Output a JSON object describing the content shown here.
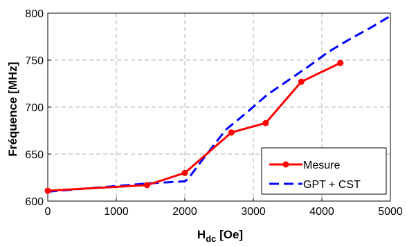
{
  "chart_data": {
    "type": "line",
    "title": "",
    "xlabel_main": "H",
    "xlabel_sub": "dc",
    "xlabel_unit": " [Oe]",
    "ylabel": "Fréquence [MHz]",
    "xlim": [
      0,
      5000
    ],
    "ylim": [
      600,
      800
    ],
    "x_ticks": [
      "0",
      "1000",
      "2000",
      "3000",
      "4000",
      "5000"
    ],
    "y_ticks": [
      "600",
      "650",
      "700",
      "750",
      "800"
    ],
    "grid": true,
    "legend_position": "bottom-right",
    "series": [
      {
        "name": "Mesure",
        "color": "#ff0000",
        "style": "solid-markers",
        "x": [
          0,
          1450,
          2000,
          2680,
          3180,
          3700,
          4270
        ],
        "y": [
          611,
          617,
          630,
          673,
          683,
          727,
          747
        ]
      },
      {
        "name": "GPT + CST",
        "color": "#0000ff",
        "style": "dashed",
        "x": [
          0,
          500,
          1000,
          1500,
          2000,
          2040,
          2300,
          2600,
          2900,
          3200,
          3500,
          3800,
          4100,
          4400,
          4700,
          5000
        ],
        "y": [
          610,
          613,
          616,
          619,
          621,
          623,
          648,
          676,
          694,
          713,
          728,
          743,
          759,
          772,
          784,
          797
        ]
      }
    ]
  }
}
